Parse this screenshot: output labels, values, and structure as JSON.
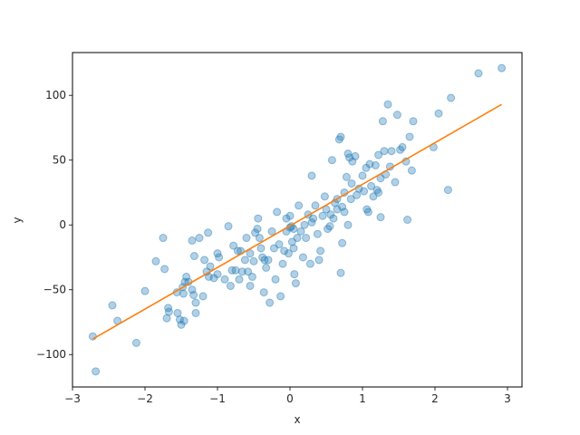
{
  "chart_data": {
    "type": "scatter",
    "xlabel": "x",
    "ylabel": "y",
    "xlim": [
      -3.0,
      3.2
    ],
    "ylim": [
      -125,
      133
    ],
    "xticks": [
      -3,
      -2,
      -1,
      0,
      1,
      2,
      3
    ],
    "yticks": [
      -100,
      -50,
      0,
      50,
      100
    ],
    "grid": false,
    "colors": {
      "points": "#1f77b4",
      "fit_line": "#ff7f0e",
      "axes": "#000000"
    },
    "series": [
      {
        "kind": "points",
        "points": [
          [
            -2.72,
            -86
          ],
          [
            -2.68,
            -113
          ],
          [
            -2.45,
            -62
          ],
          [
            -2.38,
            -74
          ],
          [
            -2.12,
            -91
          ],
          [
            -2.0,
            -51
          ],
          [
            -1.85,
            -28
          ],
          [
            -1.75,
            -10
          ],
          [
            -1.73,
            -34
          ],
          [
            -1.7,
            -72
          ],
          [
            -1.68,
            -64
          ],
          [
            -1.67,
            -67
          ],
          [
            -1.56,
            -52
          ],
          [
            -1.55,
            -68
          ],
          [
            -1.52,
            -73
          ],
          [
            -1.5,
            -77
          ],
          [
            -1.48,
            -48
          ],
          [
            -1.47,
            -53
          ],
          [
            -1.46,
            -74
          ],
          [
            -1.45,
            -44
          ],
          [
            -1.43,
            -40
          ],
          [
            -1.4,
            -44
          ],
          [
            -1.35,
            -12
          ],
          [
            -1.35,
            -50
          ],
          [
            -1.33,
            -54
          ],
          [
            -1.32,
            -24
          ],
          [
            -1.3,
            -60
          ],
          [
            -1.3,
            -68
          ],
          [
            -1.25,
            -10
          ],
          [
            -1.2,
            -55
          ],
          [
            -1.18,
            -27
          ],
          [
            -1.15,
            -36
          ],
          [
            -1.13,
            -6
          ],
          [
            -1.12,
            -40
          ],
          [
            -1.1,
            -32
          ],
          [
            -1.05,
            -41
          ],
          [
            -1.0,
            -22
          ],
          [
            -1.0,
            -38
          ],
          [
            -0.98,
            -25
          ],
          [
            -0.9,
            -42
          ],
          [
            -0.85,
            -1
          ],
          [
            -0.82,
            -47
          ],
          [
            -0.8,
            -35
          ],
          [
            -0.78,
            -16
          ],
          [
            -0.75,
            -35
          ],
          [
            -0.72,
            -20
          ],
          [
            -0.7,
            -42
          ],
          [
            -0.68,
            -20
          ],
          [
            -0.66,
            -36
          ],
          [
            -0.62,
            -27
          ],
          [
            -0.6,
            -10
          ],
          [
            -0.58,
            -36
          ],
          [
            -0.55,
            -47
          ],
          [
            -0.55,
            -22
          ],
          [
            -0.52,
            -40
          ],
          [
            -0.5,
            -28
          ],
          [
            -0.48,
            -6
          ],
          [
            -0.45,
            -3
          ],
          [
            -0.44,
            5
          ],
          [
            -0.42,
            -10
          ],
          [
            -0.4,
            -18
          ],
          [
            -0.38,
            -25
          ],
          [
            -0.36,
            -52
          ],
          [
            -0.35,
            -27
          ],
          [
            -0.33,
            -33
          ],
          [
            -0.3,
            -27
          ],
          [
            -0.28,
            -60
          ],
          [
            -0.25,
            -5
          ],
          [
            -0.22,
            -18
          ],
          [
            -0.2,
            -42
          ],
          [
            -0.18,
            10
          ],
          [
            -0.15,
            -15
          ],
          [
            -0.13,
            -55
          ],
          [
            -0.1,
            -30
          ],
          [
            -0.08,
            -20
          ],
          [
            -0.05,
            5
          ],
          [
            -0.05,
            -5
          ],
          [
            -0.02,
            -22
          ],
          [
            0.0,
            -2
          ],
          [
            0.0,
            7
          ],
          [
            0.02,
            -1
          ],
          [
            0.03,
            -13
          ],
          [
            0.05,
            -3
          ],
          [
            0.05,
            -18
          ],
          [
            0.06,
            -38
          ],
          [
            0.08,
            -45
          ],
          [
            0.1,
            -10
          ],
          [
            0.12,
            15
          ],
          [
            0.15,
            -5
          ],
          [
            0.18,
            -25
          ],
          [
            0.2,
            0
          ],
          [
            0.22,
            -10
          ],
          [
            0.25,
            8
          ],
          [
            0.28,
            -30
          ],
          [
            0.3,
            38
          ],
          [
            0.3,
            2
          ],
          [
            0.32,
            5
          ],
          [
            0.35,
            15
          ],
          [
            0.38,
            -7
          ],
          [
            0.4,
            -27
          ],
          [
            0.42,
            -20
          ],
          [
            0.45,
            7
          ],
          [
            0.48,
            22
          ],
          [
            0.5,
            12
          ],
          [
            0.52,
            -3
          ],
          [
            0.55,
            -1
          ],
          [
            0.56,
            8
          ],
          [
            0.58,
            50
          ],
          [
            0.6,
            5
          ],
          [
            0.62,
            17
          ],
          [
            0.65,
            20
          ],
          [
            0.65,
            12
          ],
          [
            0.68,
            66
          ],
          [
            0.7,
            68
          ],
          [
            0.7,
            -37
          ],
          [
            0.72,
            -14
          ],
          [
            0.72,
            14
          ],
          [
            0.75,
            25
          ],
          [
            0.75,
            10
          ],
          [
            0.78,
            37
          ],
          [
            0.8,
            55
          ],
          [
            0.8,
            0
          ],
          [
            0.82,
            52
          ],
          [
            0.84,
            20
          ],
          [
            0.85,
            32
          ],
          [
            0.86,
            49
          ],
          [
            0.9,
            53
          ],
          [
            0.92,
            23
          ],
          [
            0.95,
            28
          ],
          [
            1.0,
            38
          ],
          [
            1.02,
            26
          ],
          [
            1.05,
            44
          ],
          [
            1.06,
            12
          ],
          [
            1.08,
            10
          ],
          [
            1.1,
            47
          ],
          [
            1.12,
            30
          ],
          [
            1.15,
            22
          ],
          [
            1.18,
            46
          ],
          [
            1.2,
            27
          ],
          [
            1.22,
            54
          ],
          [
            1.22,
            25
          ],
          [
            1.25,
            6
          ],
          [
            1.25,
            36
          ],
          [
            1.28,
            80
          ],
          [
            1.3,
            57
          ],
          [
            1.32,
            39
          ],
          [
            1.35,
            93
          ],
          [
            1.38,
            45
          ],
          [
            1.4,
            57
          ],
          [
            1.45,
            33
          ],
          [
            1.48,
            85
          ],
          [
            1.52,
            58
          ],
          [
            1.55,
            60
          ],
          [
            1.6,
            49
          ],
          [
            1.62,
            4
          ],
          [
            1.65,
            68
          ],
          [
            1.68,
            42
          ],
          [
            1.7,
            80
          ],
          [
            1.98,
            60
          ],
          [
            2.05,
            86
          ],
          [
            2.18,
            27
          ],
          [
            2.22,
            98
          ],
          [
            2.6,
            117
          ],
          [
            2.92,
            121
          ]
        ]
      },
      {
        "kind": "line",
        "points": [
          [
            -2.72,
            -88
          ],
          [
            2.92,
            93
          ]
        ]
      }
    ]
  }
}
